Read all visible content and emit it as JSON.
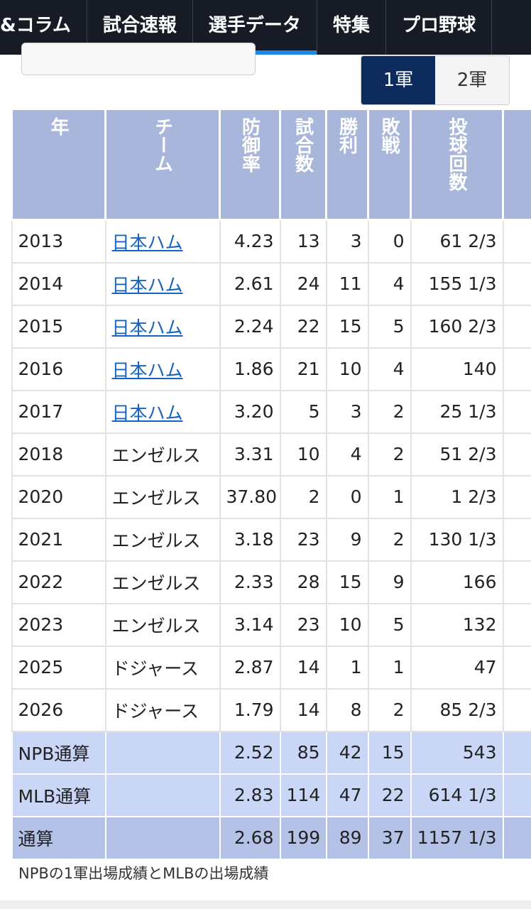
{
  "nav": {
    "tabs": [
      "&コラム",
      "試合速報",
      "選手データ",
      "特集",
      "プロ野球"
    ],
    "active": 2
  },
  "toggle": {
    "options": [
      "1軍",
      "2軍"
    ],
    "active": 0
  },
  "table": {
    "headers": [
      "年",
      "チーム",
      "防御率",
      "試合数",
      "勝利",
      "敗戦",
      "投球回数"
    ],
    "rows": [
      [
        "2013",
        "日本ハム",
        "4.23",
        "13",
        "3",
        "0",
        "61 2/3"
      ],
      [
        "2014",
        "日本ハム",
        "2.61",
        "24",
        "11",
        "4",
        "155 1/3"
      ],
      [
        "2015",
        "日本ハム",
        "2.24",
        "22",
        "15",
        "5",
        "160 2/3"
      ],
      [
        "2016",
        "日本ハム",
        "1.86",
        "21",
        "10",
        "4",
        "140"
      ],
      [
        "2017",
        "日本ハム",
        "3.20",
        "5",
        "3",
        "2",
        "25 1/3"
      ],
      [
        "2018",
        "エンゼルス",
        "3.31",
        "10",
        "4",
        "2",
        "51 2/3"
      ],
      [
        "2020",
        "エンゼルス",
        "37.80",
        "2",
        "0",
        "1",
        "1 2/3"
      ],
      [
        "2021",
        "エンゼルス",
        "3.18",
        "23",
        "9",
        "2",
        "130 1/3"
      ],
      [
        "2022",
        "エンゼルス",
        "2.33",
        "28",
        "15",
        "9",
        "166"
      ],
      [
        "2023",
        "エンゼルス",
        "3.14",
        "23",
        "10",
        "5",
        "132"
      ],
      [
        "2025",
        "ドジャース",
        "2.87",
        "14",
        "1",
        "1",
        "47"
      ],
      [
        "2026",
        "ドジャース",
        "1.79",
        "14",
        "8",
        "2",
        "85 2/3"
      ]
    ],
    "linked_team": "日本ハム",
    "totals": [
      [
        "NPB通算",
        "2.52",
        "85",
        "42",
        "15",
        "543"
      ],
      [
        "MLB通算",
        "2.83",
        "114",
        "47",
        "22",
        "614 1/3"
      ],
      [
        "通算",
        "2.68",
        "199",
        "89",
        "37",
        "1157 1/3"
      ]
    ]
  },
  "footnote": "NPBの1軍出場成績とMLBの出場成績"
}
